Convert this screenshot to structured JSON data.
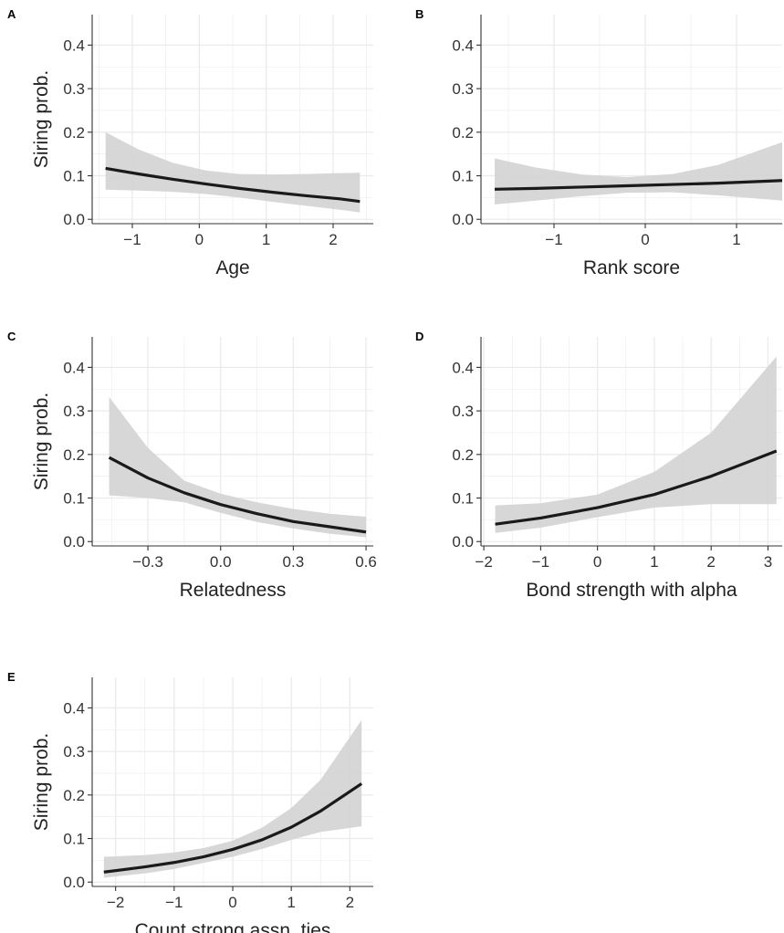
{
  "colors": {
    "line": "#1a1a1a",
    "band": "#d3d3d3",
    "grid": "#ebebeb",
    "axis": "#333333",
    "text": "#333333"
  },
  "chart_data": [
    {
      "panel": "A",
      "type": "line",
      "xlabel": "Age",
      "ylabel": "Siring prob.",
      "xlim": [
        -1.6,
        2.6
      ],
      "ylim": [
        -0.01,
        0.47
      ],
      "xticks": [
        -1,
        0,
        1,
        2
      ],
      "xtick_labels": [
        "−1",
        "0",
        "1",
        "2"
      ],
      "yticks": [
        0.0,
        0.1,
        0.2,
        0.3,
        0.4
      ],
      "ytick_labels": [
        "0.0",
        "0.1",
        "0.2",
        "0.3",
        "0.4"
      ],
      "grid": true,
      "x": [
        -1.4,
        -0.9,
        -0.4,
        0.1,
        0.6,
        1.1,
        1.6,
        2.1,
        2.4
      ],
      "y": [
        0.117,
        0.104,
        0.092,
        0.081,
        0.071,
        0.062,
        0.054,
        0.047,
        0.041
      ],
      "lower": [
        0.068,
        0.066,
        0.063,
        0.058,
        0.05,
        0.04,
        0.031,
        0.022,
        0.016
      ],
      "upper": [
        0.2,
        0.16,
        0.13,
        0.112,
        0.104,
        0.103,
        0.104,
        0.106,
        0.107
      ]
    },
    {
      "panel": "B",
      "type": "line",
      "xlabel": "Rank score",
      "ylabel": "",
      "xlim": [
        -1.8,
        1.5
      ],
      "ylim": [
        -0.01,
        0.47
      ],
      "xticks": [
        -1,
        0,
        1
      ],
      "xtick_labels": [
        "−1",
        "0",
        "1"
      ],
      "yticks": [
        0.0,
        0.1,
        0.2,
        0.3,
        0.4
      ],
      "ytick_labels": [
        "0.0",
        "0.1",
        "0.2",
        "0.3",
        "0.4"
      ],
      "grid": true,
      "x": [
        -1.65,
        -1.2,
        -0.7,
        -0.2,
        0.3,
        0.8,
        1.5
      ],
      "y": [
        0.069,
        0.071,
        0.074,
        0.077,
        0.08,
        0.083,
        0.089
      ],
      "lower": [
        0.034,
        0.043,
        0.053,
        0.061,
        0.062,
        0.055,
        0.043
      ],
      "upper": [
        0.14,
        0.119,
        0.103,
        0.097,
        0.104,
        0.125,
        0.177
      ]
    },
    {
      "panel": "C",
      "type": "line",
      "xlabel": "Relatedness",
      "ylabel": "Siring prob.",
      "xlim": [
        -0.53,
        0.63
      ],
      "ylim": [
        -0.01,
        0.47
      ],
      "xticks": [
        -0.3,
        0.0,
        0.3,
        0.6
      ],
      "xtick_labels": [
        "−0.3",
        "0.0",
        "0.3",
        "0.6"
      ],
      "yticks": [
        0.0,
        0.1,
        0.2,
        0.3,
        0.4
      ],
      "ytick_labels": [
        "0.0",
        "0.1",
        "0.2",
        "0.3",
        "0.4"
      ],
      "grid": true,
      "x": [
        -0.46,
        -0.3,
        -0.15,
        0.0,
        0.15,
        0.3,
        0.45,
        0.6
      ],
      "y": [
        0.193,
        0.146,
        0.112,
        0.085,
        0.064,
        0.046,
        0.034,
        0.022
      ],
      "lower": [
        0.106,
        0.1,
        0.09,
        0.066,
        0.045,
        0.03,
        0.018,
        0.01
      ],
      "upper": [
        0.332,
        0.215,
        0.14,
        0.11,
        0.09,
        0.075,
        0.064,
        0.057
      ]
    },
    {
      "panel": "D",
      "type": "line",
      "xlabel": "Bond strength with alpha",
      "ylabel": "",
      "xlim": [
        -2.05,
        3.25
      ],
      "ylim": [
        -0.01,
        0.47
      ],
      "xticks": [
        -2,
        -1,
        0,
        1,
        2,
        3
      ],
      "xtick_labels": [
        "−2",
        "−1",
        "0",
        "1",
        "2",
        "3"
      ],
      "yticks": [
        0.0,
        0.1,
        0.2,
        0.3,
        0.4
      ],
      "ytick_labels": [
        "0.0",
        "0.1",
        "0.2",
        "0.3",
        "0.4"
      ],
      "grid": true,
      "x": [
        -1.8,
        -1.0,
        0.0,
        1.0,
        2.0,
        3.15
      ],
      "y": [
        0.04,
        0.054,
        0.078,
        0.108,
        0.15,
        0.208
      ],
      "lower": [
        0.02,
        0.032,
        0.056,
        0.078,
        0.086,
        0.086
      ],
      "upper": [
        0.083,
        0.088,
        0.108,
        0.16,
        0.25,
        0.425
      ]
    },
    {
      "panel": "E",
      "type": "line",
      "xlabel": "Count strong assn. ties",
      "ylabel": "Siring prob.",
      "xlim": [
        -2.4,
        2.4
      ],
      "ylim": [
        -0.01,
        0.47
      ],
      "xticks": [
        -2,
        -1,
        0,
        1,
        2
      ],
      "xtick_labels": [
        "−2",
        "−1",
        "0",
        "1",
        "2"
      ],
      "yticks": [
        0.0,
        0.1,
        0.2,
        0.3,
        0.4
      ],
      "ytick_labels": [
        "0.0",
        "0.1",
        "0.2",
        "0.3",
        "0.4"
      ],
      "grid": true,
      "x": [
        -2.2,
        -1.5,
        -1.0,
        -0.5,
        0.0,
        0.5,
        1.0,
        1.5,
        2.2
      ],
      "y": [
        0.023,
        0.035,
        0.045,
        0.058,
        0.075,
        0.097,
        0.126,
        0.163,
        0.226
      ],
      "lower": [
        0.01,
        0.02,
        0.03,
        0.044,
        0.058,
        0.076,
        0.097,
        0.115,
        0.128
      ],
      "upper": [
        0.058,
        0.062,
        0.068,
        0.078,
        0.095,
        0.125,
        0.17,
        0.235,
        0.372
      ]
    }
  ]
}
